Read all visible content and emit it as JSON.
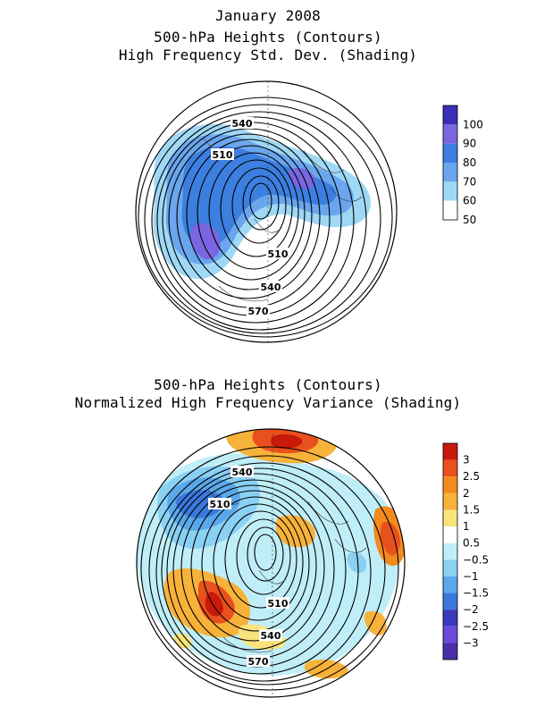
{
  "figure": {
    "title_line1": "January 2008",
    "title_line2": "500-hPa Heights (Contours)",
    "title_line3": "High Frequency Std. Dev. (Shading)",
    "title2_line1": "500-hPa Heights (Contours)",
    "title2_line2": "Normalized High Frequency Variance (Shading)"
  },
  "panel_top": {
    "contour_labels": [
      "540",
      "510",
      "510",
      "540",
      "570"
    ],
    "colorbar": {
      "labels": [
        "100",
        "90",
        "80",
        "70",
        "60",
        "50"
      ],
      "colors": [
        "#3b2fb8",
        "#7a66e0",
        "#3d7fe0",
        "#6aa6ee",
        "#9fd8f5",
        "#ffffff"
      ]
    }
  },
  "panel_bottom": {
    "contour_labels": [
      "540",
      "510",
      "510",
      "540",
      "570"
    ],
    "colorbar": {
      "labels": [
        "3",
        "2.5",
        "2",
        "1.5",
        "1",
        "0.5",
        "−0.5",
        "−1",
        "−1.5",
        "−2",
        "−2.5",
        "−3"
      ],
      "colors": [
        "#c81a0a",
        "#e8501e",
        "#f28a1e",
        "#f7b23a",
        "#fae37a",
        "#ffffff",
        "#bfeef8",
        "#8ad0f2",
        "#5aa8ea",
        "#3a78dc",
        "#3b3ab8",
        "#6a4ad8",
        "#4a2ea8"
      ]
    }
  }
}
